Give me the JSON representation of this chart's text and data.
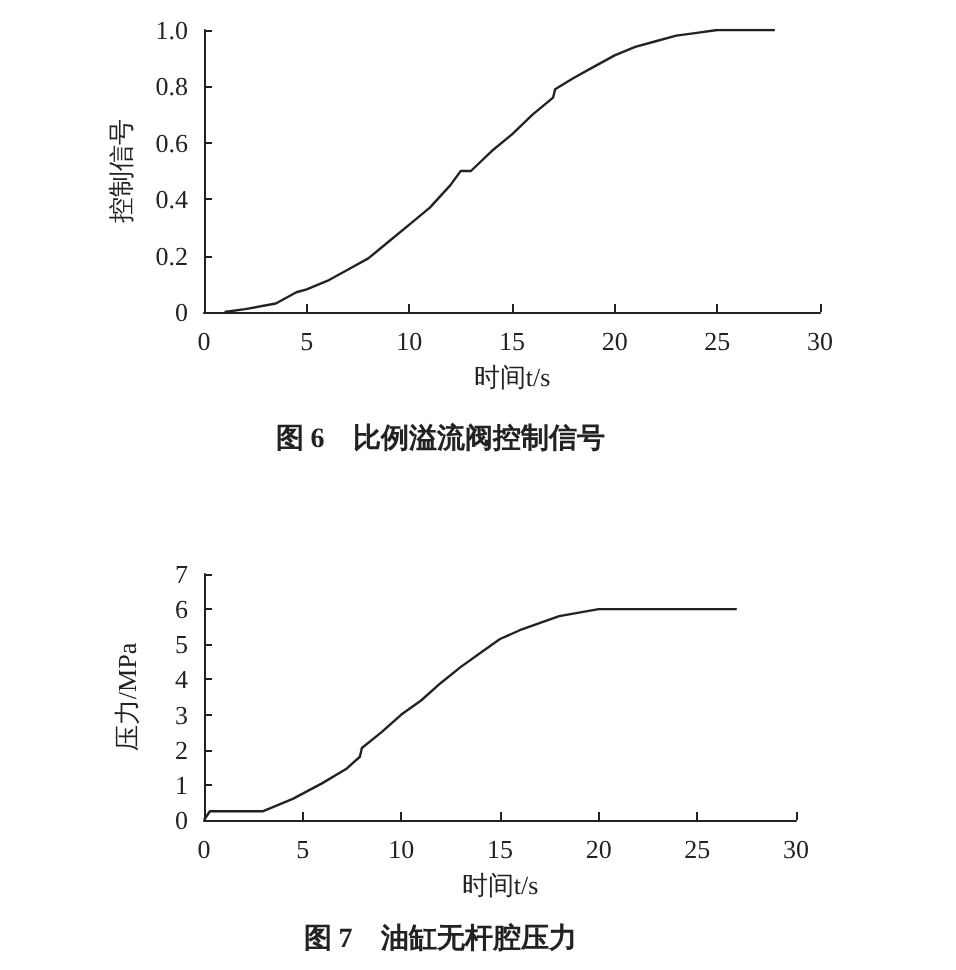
{
  "chart_data": [
    {
      "type": "line",
      "title": "图 6　比例溢流阀控制信号",
      "xlabel": "时间t/s",
      "ylabel": "控制信号",
      "color": "#222222",
      "x": [
        1,
        2,
        3.5,
        4.5,
        5,
        6,
        7,
        8,
        9,
        10,
        11,
        12,
        12.5,
        13,
        14,
        15,
        16,
        17,
        17.1,
        18,
        19,
        20,
        21,
        22,
        23,
        24,
        25,
        27.8
      ],
      "values": [
        0,
        0.01,
        0.03,
        0.07,
        0.08,
        0.11,
        0.15,
        0.19,
        0.25,
        0.31,
        0.37,
        0.45,
        0.5,
        0.5,
        0.57,
        0.63,
        0.7,
        0.76,
        0.79,
        0.83,
        0.87,
        0.91,
        0.94,
        0.96,
        0.98,
        0.99,
        1.0,
        1.0
      ],
      "xlim": [
        0,
        30
      ],
      "xticks": [
        0,
        5,
        10,
        15,
        20,
        25,
        30
      ],
      "ylim": [
        0,
        1
      ],
      "yticks": [
        0,
        0.2,
        0.4,
        0.6,
        0.8,
        {
          "value": 1,
          "label": "1.0"
        }
      ],
      "grid": false,
      "marker": "none",
      "line_style": "solid"
    },
    {
      "type": "line",
      "title": "图 7　油缸无杆腔压力",
      "xlabel": "时间t/s",
      "ylabel": "压力/MPa",
      "color": "#222222",
      "x": [
        0,
        0.3,
        3,
        4.5,
        6,
        7.2,
        7.9,
        8,
        9,
        10,
        11,
        12,
        13,
        14,
        15,
        16,
        17,
        18,
        19,
        20,
        27
      ],
      "values": [
        0,
        0.25,
        0.25,
        0.6,
        1.05,
        1.45,
        1.8,
        2.05,
        2.5,
        3.0,
        3.4,
        3.9,
        4.35,
        4.75,
        5.15,
        5.4,
        5.6,
        5.8,
        5.9,
        6.0,
        6.0
      ],
      "xlim": [
        0,
        30
      ],
      "xticks": [
        0,
        5,
        10,
        15,
        20,
        25,
        30
      ],
      "ylim": [
        0,
        7
      ],
      "yticks": [
        0,
        1,
        2,
        3,
        4,
        5,
        6,
        7
      ],
      "grid": false,
      "marker": "none",
      "line_style": "solid"
    }
  ]
}
